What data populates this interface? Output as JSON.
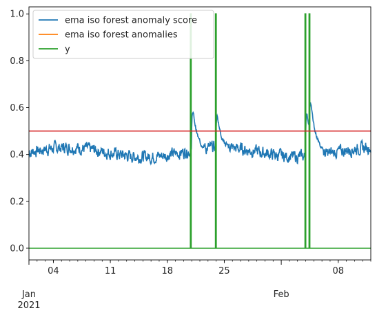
{
  "chart_data": {
    "type": "line",
    "x_unit": "date",
    "xlim": [
      "2021-01-01",
      "2021-02-12"
    ],
    "ylim": [
      -0.05,
      1.03
    ],
    "x_ticks_major": [
      {
        "date": "2021-01-04",
        "label": "04"
      },
      {
        "date": "2021-01-11",
        "label": "11"
      },
      {
        "date": "2021-01-18",
        "label": "18"
      },
      {
        "date": "2021-01-25",
        "label": "25"
      },
      {
        "date": "2021-02-08",
        "label": "08"
      }
    ],
    "x_ticks_month": [
      {
        "date": "2021-01-01",
        "label": "Jan",
        "sublabel": "2021"
      },
      {
        "date": "2021-02-01",
        "label": "Feb",
        "sublabel": ""
      }
    ],
    "y_ticks": [
      "0.0",
      "0.2",
      "0.4",
      "0.6",
      "0.8",
      "1.0"
    ],
    "legend_position": "upper-left",
    "threshold": {
      "y": 0.5,
      "color": "#d62728"
    },
    "series": [
      {
        "name": "ema iso forest anomaly score",
        "color": "#1f77b4",
        "base_level": 0.41,
        "peaks": [
          {
            "date": "2021-01-21",
            "value": 0.63
          },
          {
            "date": "2021-01-24",
            "value": 0.6
          },
          {
            "date": "2021-02-04",
            "value": 0.62
          },
          {
            "date": "2021-02-04T12:00",
            "value": 0.66
          }
        ],
        "range": [
          0.36,
          0.66
        ]
      },
      {
        "name": "ema iso forest anomalies",
        "color": "#ff7f0e",
        "values_note": ""
      },
      {
        "name": "y",
        "color": "#2ca02c",
        "base_value": 0,
        "spikes": [
          {
            "date": "2021-01-20T20:00",
            "value": 1.0
          },
          {
            "date": "2021-01-23T22:00",
            "value": 1.0
          },
          {
            "date": "2021-02-03T22:00",
            "value": 1.0
          },
          {
            "date": "2021-02-04T10:00",
            "value": 1.0
          }
        ]
      }
    ]
  }
}
